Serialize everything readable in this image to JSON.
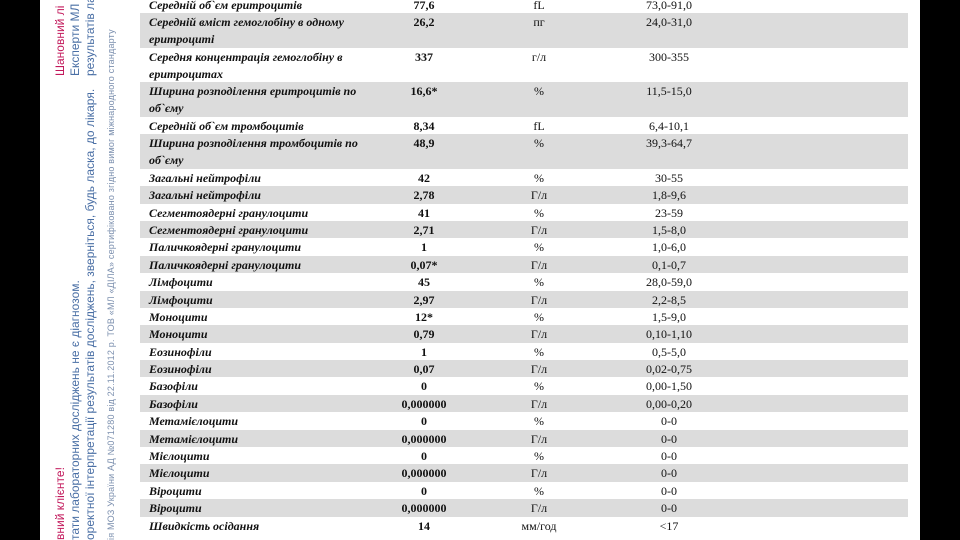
{
  "sidebar": {
    "greeting_right": "Шановний лі",
    "line2_right": "Експерти МЛ",
    "line3_right": "результатів ла",
    "greeting_left": "вний клієнте!",
    "line2_left": "тати лабораторних досліджень не є діагнозом.",
    "line3_left": "оректної інтерпретації результатів досліджень, зверніться, будь ласка, до лікаря.",
    "license": "ія МОЗ України АД №071280 від 22.11.2012 р.     ТОВ «МЛ «ДІЛА» сертифіковано згідно вимог міжнародного стандарту"
  },
  "rows": [
    {
      "name": "Середній об`єм еритроцитів",
      "value": "77,6",
      "unit": "fL",
      "ref": "73,0-91,0"
    },
    {
      "name": "Середній вміст гемоглобіну в одному еритроциті",
      "value": "26,2",
      "unit": "пг",
      "ref": "24,0-31,0"
    },
    {
      "name": "Середня концентрація гемоглобіну в еритроцитах",
      "value": "337",
      "unit": "г/л",
      "ref": "300-355"
    },
    {
      "name": "Ширина розподілення еритроцитів по об`єму",
      "value": "16,6*",
      "unit": "%",
      "ref": "11,5-15,0"
    },
    {
      "name": "Середній об`єм тромбоцитів",
      "value": "8,34",
      "unit": "fL",
      "ref": "6,4-10,1"
    },
    {
      "name": "Ширина розподілення тромбоцитів по об`єму",
      "value": "48,9",
      "unit": "%",
      "ref": "39,3-64,7"
    },
    {
      "name": "Загальні нейтрофіли",
      "value": "42",
      "unit": "%",
      "ref": "30-55"
    },
    {
      "name": "Загальні нейтрофіли",
      "value": "2,78",
      "unit": "Г/л",
      "ref": "1,8-9,6"
    },
    {
      "name": "Сегментоядерні гранулоцити",
      "value": "41",
      "unit": "%",
      "ref": "23-59"
    },
    {
      "name": "Сегментоядерні гранулоцити",
      "value": "2,71",
      "unit": "Г/л",
      "ref": "1,5-8,0"
    },
    {
      "name": "Паличкоядерні гранулоцити",
      "value": "1",
      "unit": "%",
      "ref": "1,0-6,0"
    },
    {
      "name": "Паличкоядерні гранулоцити",
      "value": "0,07*",
      "unit": "Г/л",
      "ref": "0,1-0,7"
    },
    {
      "name": "Лімфоцити",
      "value": "45",
      "unit": "%",
      "ref": "28,0-59,0"
    },
    {
      "name": "Лімфоцити",
      "value": "2,97",
      "unit": "Г/л",
      "ref": "2,2-8,5"
    },
    {
      "name": "Моноцити",
      "value": "12*",
      "unit": "%",
      "ref": "1,5-9,0"
    },
    {
      "name": "Моноцити",
      "value": "0,79",
      "unit": "Г/л",
      "ref": "0,10-1,10"
    },
    {
      "name": "Еозинофіли",
      "value": "1",
      "unit": "%",
      "ref": "0,5-5,0"
    },
    {
      "name": "Еозинофіли",
      "value": "0,07",
      "unit": "Г/л",
      "ref": "0,02-0,75"
    },
    {
      "name": "Базофіли",
      "value": "0",
      "unit": "%",
      "ref": "0,00-1,50"
    },
    {
      "name": "Базофіли",
      "value": "0,000000",
      "unit": "Г/л",
      "ref": "0,00-0,20"
    },
    {
      "name": "Метамієлоцити",
      "value": "0",
      "unit": "%",
      "ref": "0-0"
    },
    {
      "name": "Метамієлоцити",
      "value": "0,000000",
      "unit": "Г/л",
      "ref": "0-0"
    },
    {
      "name": "Мієлоцити",
      "value": "0",
      "unit": "%",
      "ref": "0-0"
    },
    {
      "name": "Мієлоцити",
      "value": "0,000000",
      "unit": "Г/л",
      "ref": "0-0"
    },
    {
      "name": "Віроцити",
      "value": "0",
      "unit": "%",
      "ref": "0-0"
    },
    {
      "name": "Віроцити",
      "value": "0,000000",
      "unit": "Г/л",
      "ref": "0-0"
    },
    {
      "name": "Швидкість осідання",
      "value": "14",
      "unit": "мм/год",
      "ref": "<17"
    }
  ]
}
